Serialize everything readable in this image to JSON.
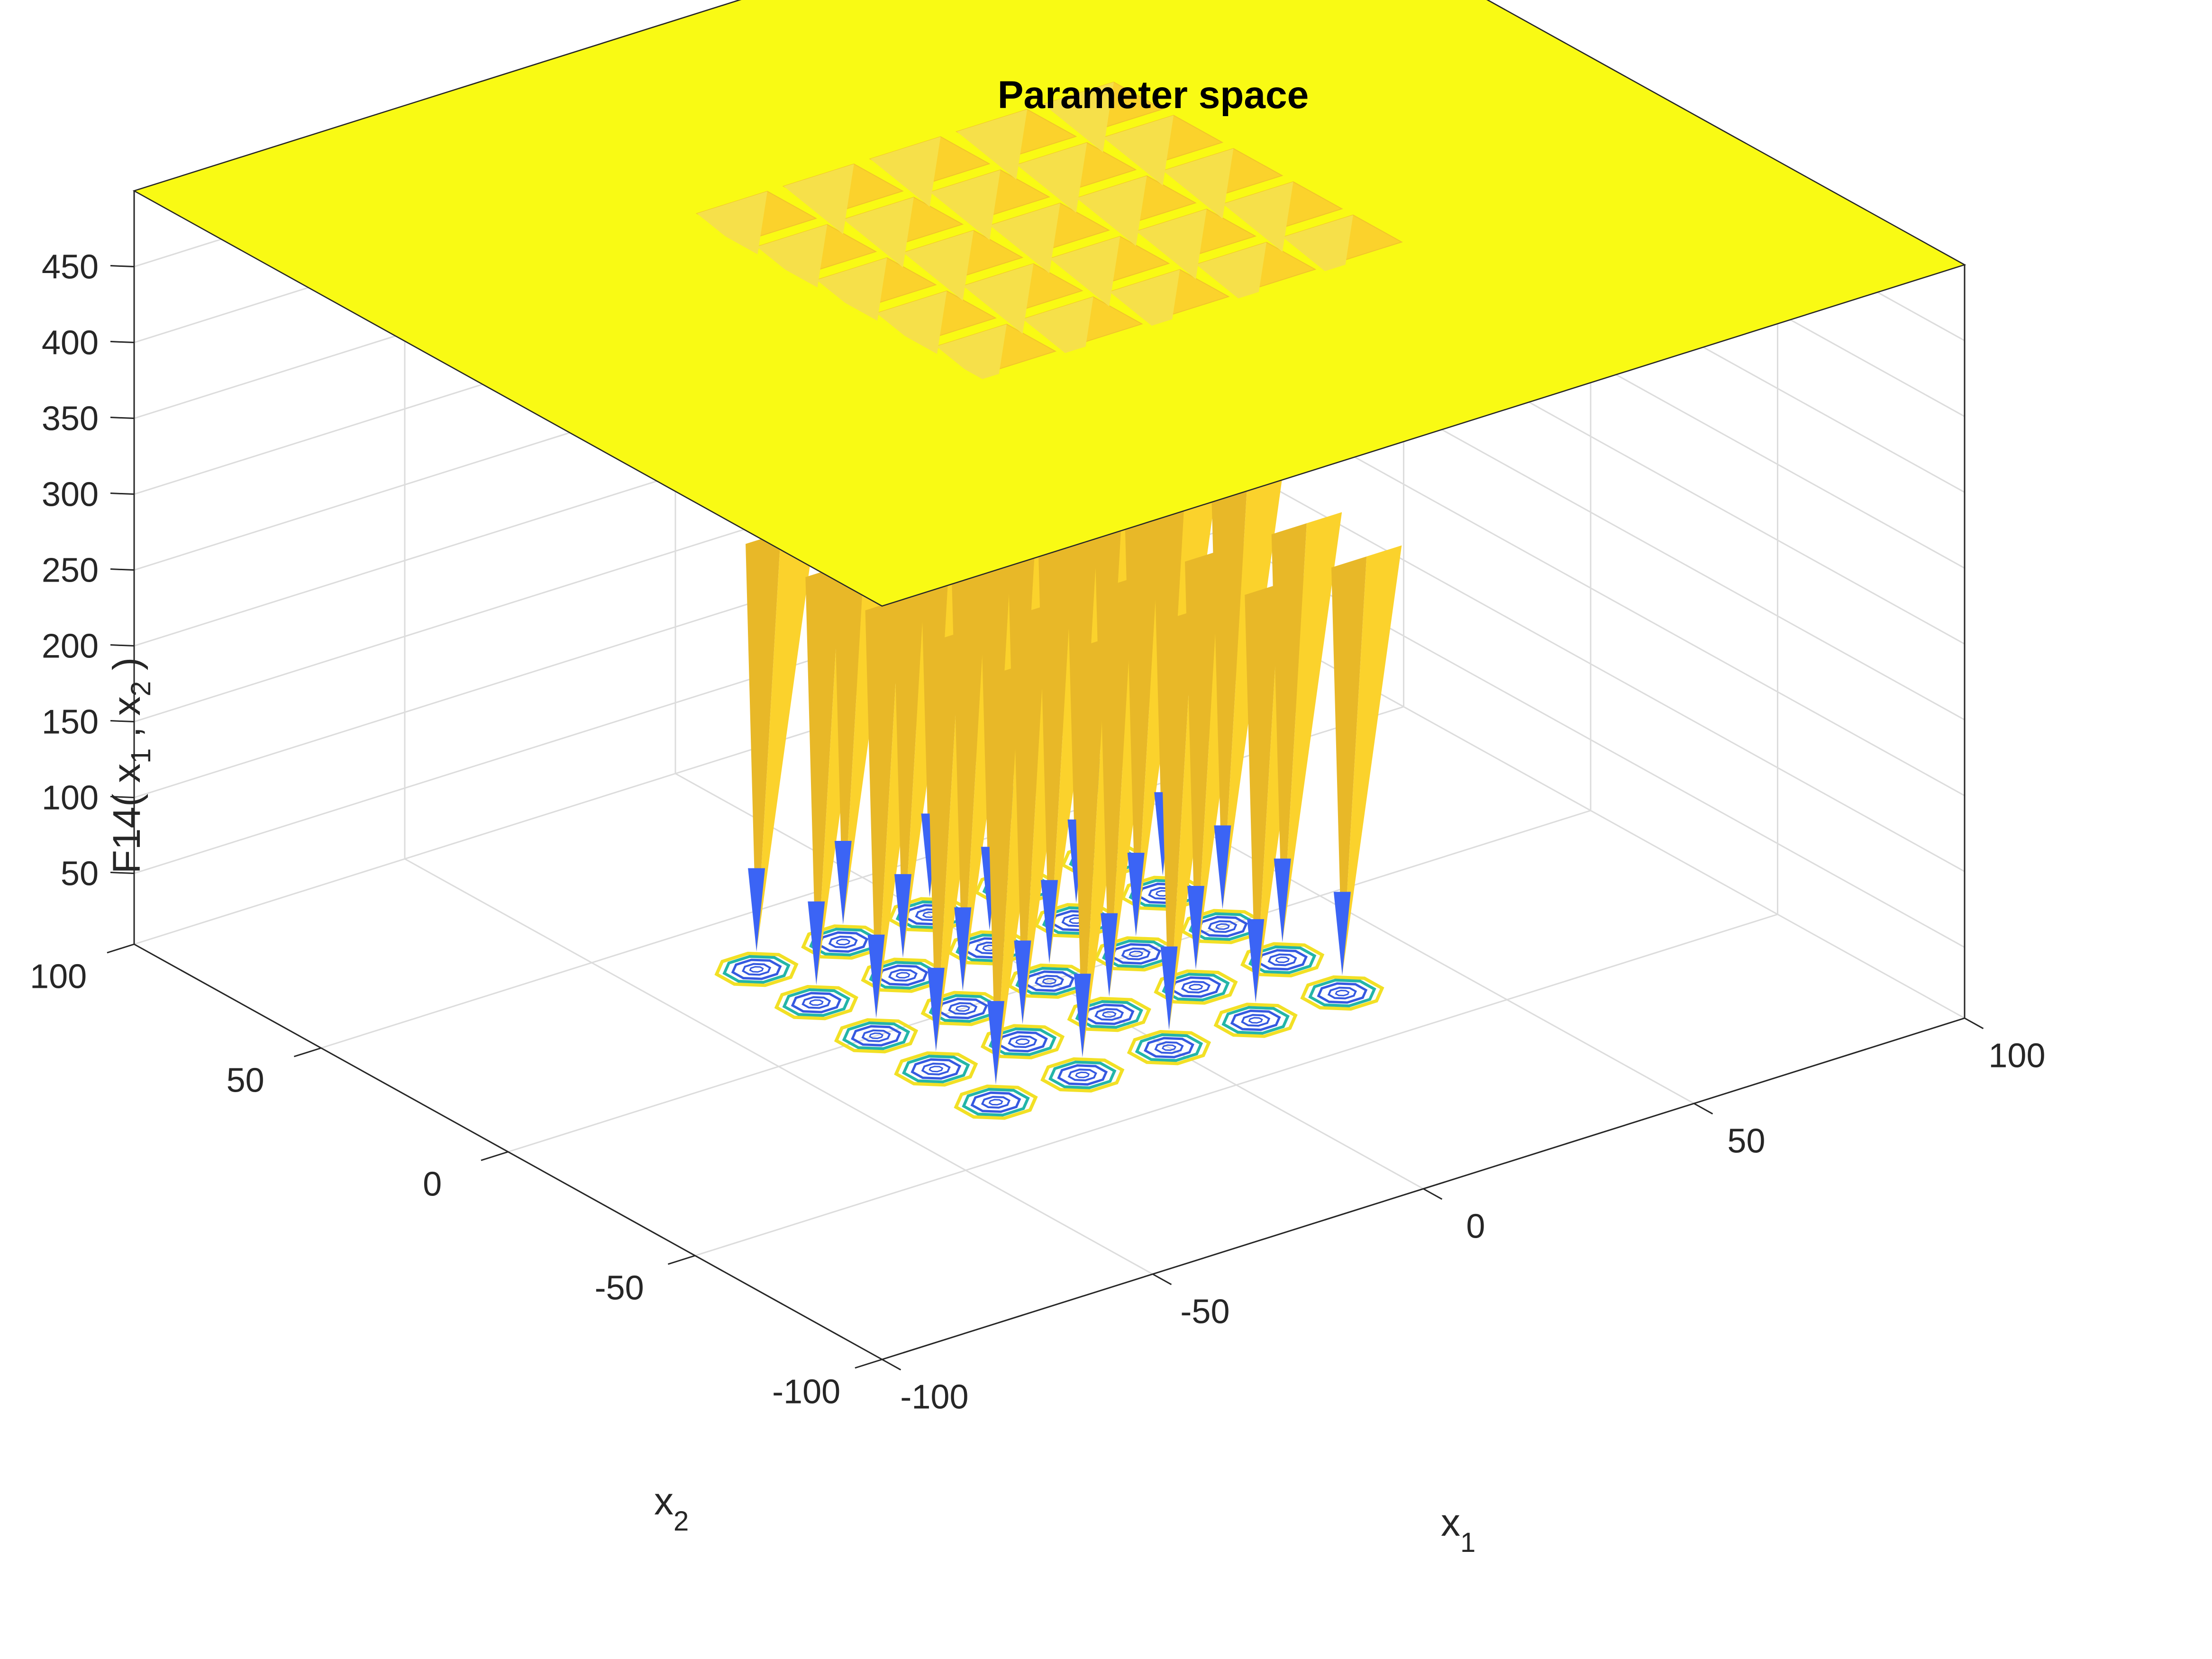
{
  "chart_data": {
    "type": "surface",
    "title": "Parameter space",
    "xlabel_base": "x",
    "xlabel_sub": "1",
    "ylabel_base": "x",
    "ylabel_sub": "2",
    "zlabel": {
      "pre": "F14( x",
      "sub1": "1",
      "mid": " , x",
      "sub2": "2",
      "post": " )"
    },
    "xlim": [
      -100,
      100
    ],
    "ylim": [
      -100,
      100
    ],
    "zlim": [
      0,
      500
    ],
    "plateau_value": 500,
    "x_ticks": [
      "-100",
      "-50",
      "0",
      "50",
      "100"
    ],
    "x_tick_values": [
      -100,
      -50,
      0,
      50,
      100
    ],
    "y_ticks": [
      "-100",
      "-50",
      "0",
      "50",
      "100"
    ],
    "y_tick_values": [
      -100,
      -50,
      0,
      50,
      100
    ],
    "z_ticks": [
      "50",
      "100",
      "150",
      "200",
      "250",
      "300",
      "350",
      "400",
      "450"
    ],
    "z_tick_values": [
      50,
      100,
      150,
      200,
      250,
      300,
      350,
      400,
      450
    ],
    "minima_grid": [
      -32,
      -16,
      0,
      16,
      32
    ],
    "grid": true,
    "contour_projection": true,
    "colors": {
      "plateau": "#f9fa14",
      "well": "#fbd22c",
      "well_dark": "#e8b828",
      "tip": "#3b64f5",
      "contour_yellow": "#f2e025",
      "contour_teal": "#23b5a8",
      "contour_blue": "#3559e0",
      "edge": "#262626"
    }
  }
}
